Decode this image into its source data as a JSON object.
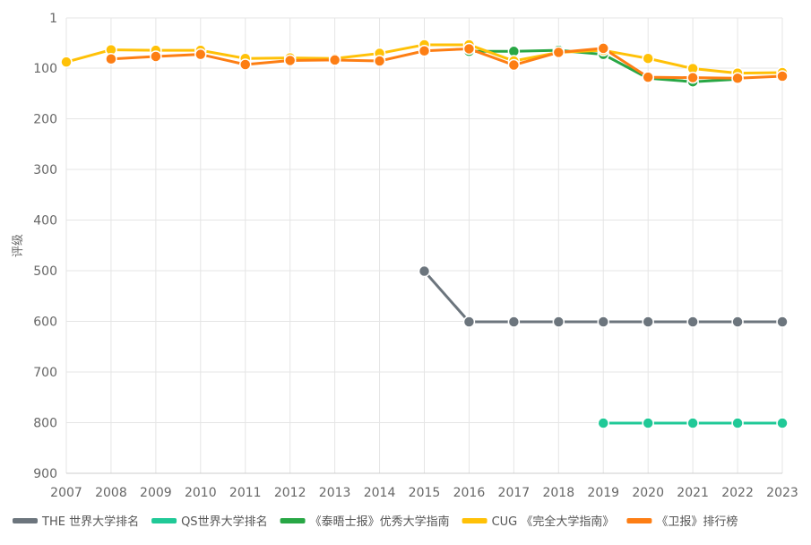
{
  "chart_data": {
    "type": "line",
    "title": "",
    "xlabel": "",
    "ylabel": "评级",
    "y_reversed": true,
    "ylim": [
      1,
      900
    ],
    "y_ticks": [
      1,
      100,
      200,
      300,
      400,
      500,
      600,
      700,
      800,
      900
    ],
    "x": [
      "2007",
      "2008",
      "2009",
      "2010",
      "2011",
      "2012",
      "2013",
      "2014",
      "2015",
      "2016",
      "2017",
      "2018",
      "2019",
      "2020",
      "2021",
      "2022",
      "2023"
    ],
    "grid": true,
    "legend_position": "bottom",
    "series": [
      {
        "name": "THE 世界大学排名",
        "color": "#6c757d",
        "values": [
          null,
          null,
          null,
          null,
          null,
          null,
          null,
          null,
          501,
          601,
          601,
          601,
          601,
          601,
          601,
          601,
          601
        ]
      },
      {
        "name": "QS世界大学排名",
        "color": "#20c997",
        "values": [
          null,
          null,
          null,
          null,
          null,
          null,
          null,
          null,
          null,
          null,
          null,
          null,
          801,
          801,
          801,
          801,
          801
        ]
      },
      {
        "name": "《泰晤士报》优秀大学指南",
        "color": "#28a745",
        "values": [
          null,
          null,
          null,
          null,
          null,
          null,
          null,
          null,
          null,
          67,
          67,
          65,
          73,
          120,
          127,
          122,
          null
        ]
      },
      {
        "name": "CUG 《完全大学指南》",
        "color": "#ffc107",
        "values": [
          88,
          64,
          65,
          65,
          81,
          80,
          81,
          71,
          54,
          54,
          86,
          69,
          65,
          81,
          101,
          110,
          109
        ]
      },
      {
        "name": "《卫报》排行榜",
        "color": "#fd7e14",
        "values": [
          null,
          82,
          77,
          73,
          93,
          85,
          84,
          86,
          66,
          62,
          94,
          69,
          61,
          118,
          119,
          120,
          116
        ]
      }
    ]
  }
}
